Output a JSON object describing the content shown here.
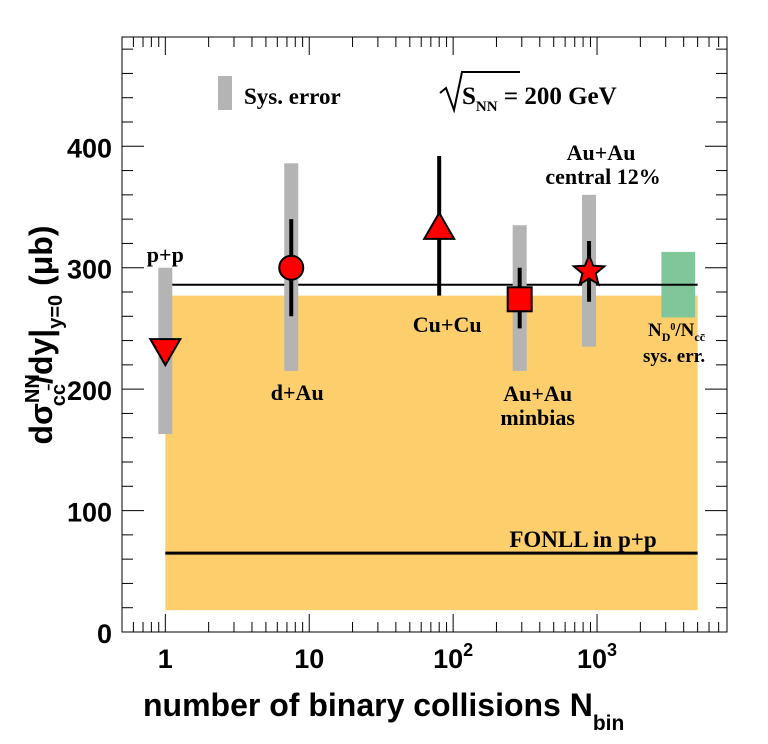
{
  "chart_data": {
    "type": "scatter",
    "x_scale": "log",
    "xlim": [
      0.5,
      8000
    ],
    "ylim": [
      0,
      490
    ],
    "yticks": [
      0,
      100,
      200,
      300,
      400
    ],
    "xticks": [
      {
        "value": 1,
        "base": "1",
        "exp": ""
      },
      {
        "value": 10,
        "base": "10",
        "exp": ""
      },
      {
        "value": 100,
        "base": "10",
        "exp": "2"
      },
      {
        "value": 1000,
        "base": "10",
        "exp": "3"
      }
    ],
    "xlabel": {
      "main": "number of binary collisions N",
      "sub": "bin"
    },
    "ylabel": {
      "text": "dσ",
      "sup": "NN",
      "sub": "cc̄",
      "text2": "/dy|",
      "sub2": "y=0",
      "text3": " (μb)"
    },
    "energy_label": {
      "main": "S",
      "sub": "NN",
      "value": " = 200 GeV"
    },
    "legend": {
      "sys_error": "Sys. error",
      "color": "#b4b4b4"
    },
    "fonll_band": {
      "xmin": 1,
      "xmax": 5000,
      "ymin": 18,
      "ymax": 277,
      "color": "#fcce6c"
    },
    "fonll_line": {
      "xmin": 1,
      "xmax": 5000,
      "y": 65,
      "label": "FONLL in p+p"
    },
    "avg_line": {
      "xmin": 1,
      "xmax": 5000,
      "y": 286
    },
    "nd_box": {
      "xmin": 2800,
      "xmax": 4800,
      "ymin": 259,
      "ymax": 313,
      "color": "#7fc79b",
      "label": {
        "main": "N",
        "sub1": "D",
        "sup1": "0",
        "mid": "/N",
        "sub2": "cc̄"
      },
      "label2": "sys. err."
    },
    "points": [
      {
        "name": "p+p",
        "x": 1,
        "y": 233,
        "stat_low": 233,
        "stat_high": 233,
        "sys_low": 163,
        "sys_high": 300,
        "marker": "triangle-down",
        "label_lines": [
          "p+p"
        ]
      },
      {
        "name": "d+Au",
        "x": 7.5,
        "y": 300,
        "stat_low": 260,
        "stat_high": 340,
        "sys_low": 215,
        "sys_high": 386,
        "marker": "circle",
        "label_lines": [
          "d+Au"
        ]
      },
      {
        "name": "Cu+Cu",
        "x": 80,
        "y": 332,
        "stat_low": 277,
        "stat_high": 392,
        "sys_low": null,
        "sys_high": null,
        "marker": "triangle-up",
        "label_lines": [
          "Cu+Cu"
        ]
      },
      {
        "name": "Au+Au minbias",
        "x": 290,
        "y": 274,
        "stat_low": 250,
        "stat_high": 300,
        "sys_low": 215,
        "sys_high": 335,
        "marker": "square",
        "label_lines": [
          "Au+Au",
          "minbias"
        ]
      },
      {
        "name": "Au+Au central 12%",
        "x": 880,
        "y": 297,
        "stat_low": 272,
        "stat_high": 322,
        "sys_low": 235,
        "sys_high": 360,
        "marker": "star",
        "label_lines": [
          "Au+Au",
          "central 12%"
        ]
      }
    ]
  }
}
